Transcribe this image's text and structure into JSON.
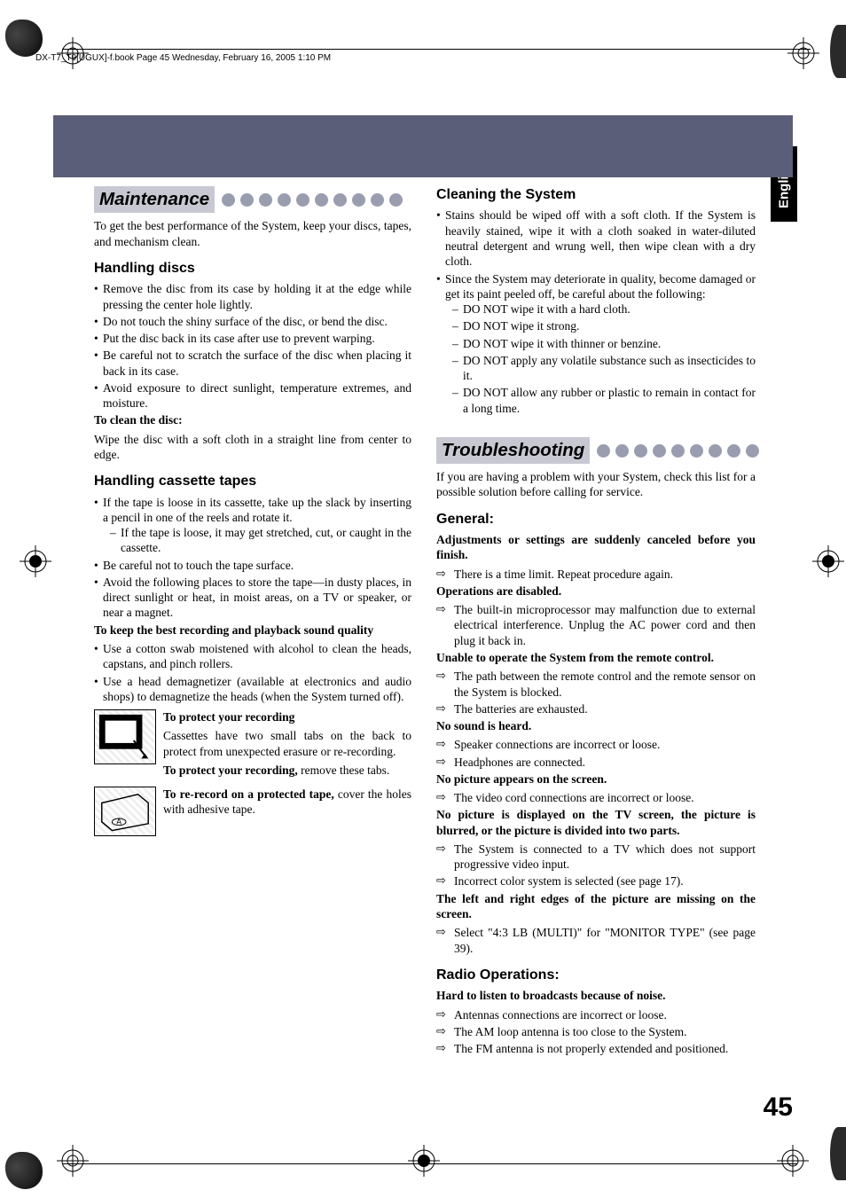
{
  "colors": {
    "banner": "#5a5e78",
    "title_bg": "#c8c8d2",
    "dot": "#9a9db0",
    "text": "#000000",
    "background": "#ffffff",
    "tab_bg": "#000000",
    "tab_text": "#ffffff"
  },
  "header_line": "DX-T7_T9[UGUX]-f.book  Page 45  Wednesday, February 16, 2005  1:10 PM",
  "language_tab": "English",
  "page_number": "45",
  "dot_count_maintenance": 10,
  "dot_count_troubleshooting": 9,
  "maintenance": {
    "title": "Maintenance",
    "intro": "To get the best performance of the System, keep your discs, tapes, and mechanism clean.",
    "handling_discs": {
      "title": "Handling discs",
      "bullets": [
        "Remove the disc from its case by holding it at the edge while pressing the center hole lightly.",
        "Do not touch the shiny surface of the disc, or bend the disc.",
        "Put the disc back in its case after use to prevent warping.",
        "Be careful not to scratch the surface of the disc when placing it back in its case.",
        "Avoid exposure to direct sunlight, temperature extremes, and moisture."
      ],
      "clean_label": "To clean the disc:",
      "clean_text": "Wipe the disc with a soft cloth in a straight line from center to edge."
    },
    "handling_tapes": {
      "title": "Handling cassette tapes",
      "b1": "If the tape is loose in its cassette, take up the slack by inserting a pencil in one of the reels and rotate it.",
      "b1_sub": "If the tape is loose, it may get stretched, cut, or caught in the cassette.",
      "b2": "Be careful not to touch the tape surface.",
      "b3": "Avoid the following places to store the tape—in dusty places, in direct sunlight or heat, in moist areas, on a TV or speaker, or near a magnet.",
      "keep_label": "To keep the best recording and playback sound quality",
      "kb1": "Use a cotton swab moistened with alcohol to clean the heads, capstans, and pinch rollers.",
      "kb2": "Use a head demagnetizer (available at electronics and audio shops) to demagnetize the heads (when the System turned off).",
      "protect_label": "To protect your recording",
      "protect_text": "Cassettes have two small tabs on the back to protect from unexpected erasure or re-recording.",
      "protect_bold2": "To protect your recording,",
      "protect_text2": " remove these tabs.",
      "rerecord_bold": "To re-record on a protected tape,",
      "rerecord_text": " cover the holes with adhesive tape."
    }
  },
  "cleaning": {
    "title": "Cleaning the System",
    "b1": "Stains should be wiped off with a soft cloth. If the System is heavily stained, wipe it with a cloth soaked in water-diluted neutral detergent and wrung well, then wipe clean with a dry cloth.",
    "b2": "Since the System may deteriorate in quality, become damaged or get its paint peeled off, be careful about the following:",
    "subs": [
      "DO NOT wipe it with a hard cloth.",
      "DO NOT wipe it strong.",
      "DO NOT wipe it with thinner or benzine.",
      "DO NOT apply any volatile substance such as insecticides to it.",
      "DO NOT allow any rubber or plastic to remain in contact for a long time."
    ]
  },
  "troubleshooting": {
    "title": "Troubleshooting",
    "intro": "If you are having a problem with your System, check this list for a possible solution before calling for service.",
    "general_title": "General:",
    "general": [
      {
        "q": "Adjustments or settings are suddenly canceled before you finish.",
        "a": [
          "There is a time limit. Repeat procedure again."
        ]
      },
      {
        "q": "Operations are disabled.",
        "a": [
          "The built-in microprocessor may malfunction due to external electrical interference. Unplug the AC power cord and then plug it back in."
        ]
      },
      {
        "q": "Unable to operate the System from the remote control.",
        "a": [
          "The path between the remote control and the remote sensor on the System is blocked.",
          "The batteries are exhausted."
        ]
      },
      {
        "q": "No sound is heard.",
        "a": [
          "Speaker connections are incorrect or loose.",
          "Headphones are connected."
        ]
      },
      {
        "q": "No picture appears on the screen.",
        "a": [
          "The video cord connections are incorrect or loose."
        ]
      },
      {
        "q": "No picture is displayed on the TV screen, the picture is blurred, or the picture is divided into two parts.",
        "a": [
          "The System is connected to a TV which does not support progressive video input.",
          "Incorrect color system is selected (see page 17)."
        ]
      },
      {
        "q": "The left and right edges of the picture are missing on the screen.",
        "a": [
          "Select \"4:3 LB (MULTI)\" for \"MONITOR TYPE\" (see page 39)."
        ]
      }
    ],
    "radio_title": "Radio Operations:",
    "radio": [
      {
        "q": "Hard to listen to broadcasts because of noise.",
        "a": [
          "Antennas connections are incorrect or loose.",
          "The AM loop antenna is too close to the System.",
          "The FM antenna is not properly extended and positioned."
        ]
      }
    ]
  }
}
